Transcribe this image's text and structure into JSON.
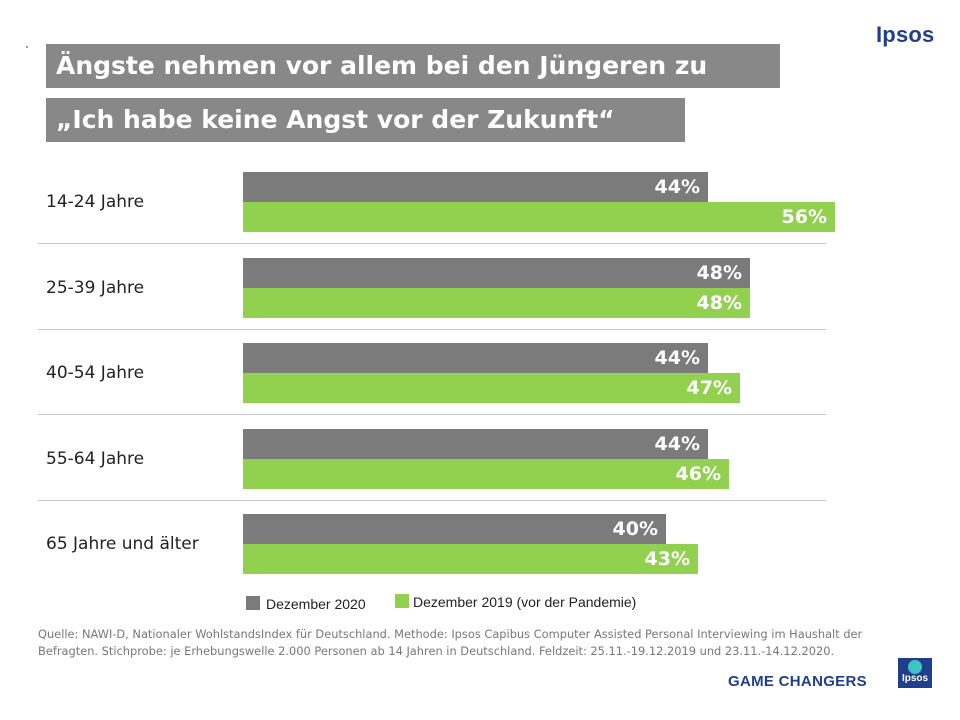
{
  "brand": "Ipsos",
  "title_line1": "Ängste nehmen vor allem bei den Jüngeren zu",
  "title_line2": "„Ich habe keine Angst vor der Zukunft“",
  "colors": {
    "series_2020": "#7b7b7b",
    "series_2019": "#92d050",
    "brand": "#1f3f8c",
    "title_bg": "#888888"
  },
  "chart_data": {
    "type": "bar",
    "orientation": "horizontal",
    "categories": [
      "14-24 Jahre",
      "25-39 Jahre",
      "40-54 Jahre",
      "55-64 Jahre",
      "65 Jahre und älter"
    ],
    "series": [
      {
        "name": "Dezember 2020",
        "values": [
          44,
          48,
          44,
          44,
          40
        ],
        "labels": [
          "44%",
          "48%",
          "44%",
          "44%",
          "40%"
        ]
      },
      {
        "name": "Dezember 2019 (vor der Pandemie)",
        "values": [
          56,
          48,
          47,
          46,
          43
        ],
        "labels": [
          "56%",
          "48%",
          "47%",
          "46%",
          "43%"
        ]
      }
    ],
    "xlim": [
      0,
      56
    ],
    "unit": "%"
  },
  "source": "Quelle:  NAWI-D, Nationaler WohlstandsIndex für Deutschland. Methode: Ipsos Capibus Computer Assisted Personal Interviewing im Haushalt der Befragten. Stichprobe: je Erhebungswelle 2.000 Personen ab 14 Jahren in Deutschland. Feldzeit:  25.11.-19.12.2019  und 23.11.-14.12.2020.",
  "tagline": "GAME CHANGERS",
  "logo_text": "Ipsos"
}
